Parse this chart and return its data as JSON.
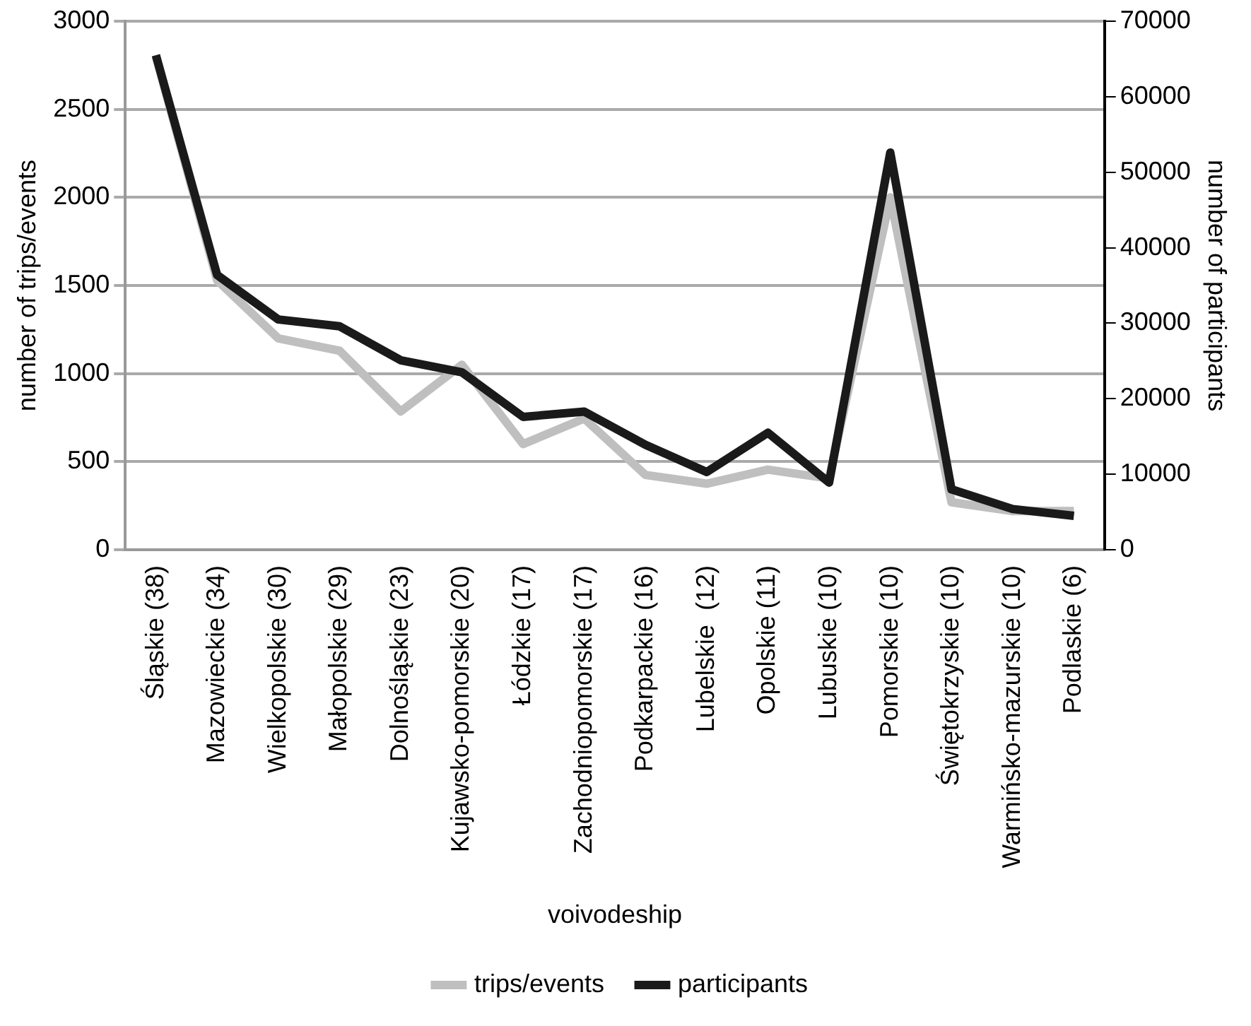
{
  "chart_data": {
    "type": "line",
    "xlabel": "voivodeship",
    "ylabel": "number of trips/events",
    "y2label": "number of participants",
    "categories": [
      "Śląskie (38)",
      "Mazowieckie (34)",
      "Wielkopolskie (30)",
      "Małopolskie (29)",
      "Dolnośląskie (23)",
      "Kujawsko-pomorskie (20)",
      "Łódzkie (17)",
      "Zachodniopomorskie (17)",
      "Podkarpackie (16)",
      "Lubelskie  (12)",
      "Opolskie (11)",
      "Lubuskie (10)",
      "Pomorskie (10)",
      "Świętokrzyskie (10)",
      "Warmińsko-mazurskie (10)",
      "Podlaskie (6)"
    ],
    "series": [
      {
        "name": "trips/events",
        "color": "#bfbfbf",
        "values": [
          2800,
          1530,
          1200,
          1130,
          785,
          1050,
          600,
          745,
          425,
          375,
          455,
          405,
          2000,
          270,
          220,
          220
        ]
      },
      {
        "name": "participants",
        "color": "#1a1a1a",
        "axis": "y2",
        "values": [
          65500,
          36400,
          30500,
          29600,
          25100,
          23500,
          17600,
          18300,
          13900,
          10300,
          15500,
          8900,
          52600,
          8000,
          5400,
          4500
        ]
      }
    ],
    "ylim": [
      0,
      3000
    ],
    "yticks": [
      0,
      500,
      1000,
      1500,
      2000,
      2500,
      3000
    ],
    "y2lim": [
      0,
      70000
    ],
    "y2ticks": [
      0,
      10000,
      20000,
      30000,
      40000,
      50000,
      60000,
      70000
    ],
    "grid": "y",
    "legend": "bottom",
    "marker": "none",
    "line_style": "solid"
  }
}
